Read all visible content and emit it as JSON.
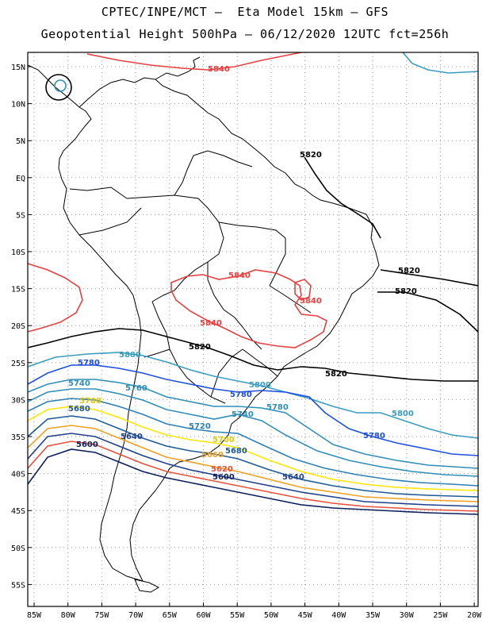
{
  "header": {
    "line1": "CPTEC/INPE/MCT –  Eta Model 15km – GFS",
    "line2": "Geopotential Height 500hPa – 06/12/2020 12UTC fct=256h"
  },
  "axes": {
    "lat_labels": [
      "15N",
      "10N",
      "5N",
      "EQ",
      "5S",
      "10S",
      "15S",
      "20S",
      "25S",
      "30S",
      "35S",
      "40S",
      "45S",
      "50S",
      "55S"
    ],
    "lon_labels": [
      "85W",
      "80W",
      "75W",
      "70W",
      "65W",
      "60W",
      "55W",
      "50W",
      "45W",
      "40W",
      "35W",
      "30W",
      "25W",
      "20W"
    ]
  },
  "colors": {
    "c5600": "#0b1f5c",
    "c5620": "#e8503c",
    "c5640": "#1f3f8c",
    "c5660": "#f0a020",
    "c5680": "#1e5a96",
    "c5700": "#ffe600",
    "c5720": "#2d7fb5",
    "c5740": "#2f8fb8",
    "c5760": "#2f8fb8",
    "c5780": "#1e4fe0",
    "c5800": "#3a9cc0",
    "c5820": "#000000",
    "c5840": "#e84040"
  },
  "contours": {
    "labels": [
      {
        "id": "l5840-top",
        "text": "5840",
        "color": "#e84040"
      },
      {
        "id": "l5820-a",
        "text": "5820",
        "color": "#000000"
      },
      {
        "id": "l5840-a",
        "text": "5840",
        "color": "#e84040"
      },
      {
        "id": "l5840-b",
        "text": "5840",
        "color": "#e84040"
      },
      {
        "id": "l5840-c",
        "text": "5840",
        "color": "#e84040"
      },
      {
        "id": "l5820-b",
        "text": "5820",
        "color": "#000000"
      },
      {
        "id": "l5820-c",
        "text": "5820",
        "color": "#000000"
      },
      {
        "id": "l5820-d",
        "text": "5820",
        "color": "#000000"
      },
      {
        "id": "l5820-e",
        "text": "5820",
        "color": "#000000"
      },
      {
        "id": "l5800-a",
        "text": "5800",
        "color": "#3a9cc0"
      },
      {
        "id": "l5780-a",
        "text": "5780",
        "color": "#1e4fe0"
      },
      {
        "id": "l5760-a",
        "text": "5760",
        "color": "#2f8fb8"
      },
      {
        "id": "l5740-a",
        "text": "5740",
        "color": "#2f8fb8"
      },
      {
        "id": "l5700-a",
        "text": "5700",
        "color": "#e0c800"
      },
      {
        "id": "l5680-a",
        "text": "5680",
        "color": "#1e5a96"
      },
      {
        "id": "l5640-a",
        "text": "5640",
        "color": "#1f3f8c"
      },
      {
        "id": "l5600-a",
        "text": "5600",
        "color": "#0b1f5c"
      },
      {
        "id": "l5800-b",
        "text": "5800",
        "color": "#3a9cc0"
      },
      {
        "id": "l5780-b",
        "text": "5780",
        "color": "#1e4fe0"
      },
      {
        "id": "l5740-b",
        "text": "5740",
        "color": "#2f8fb8"
      },
      {
        "id": "l5780-c",
        "text": "5780",
        "color": "#2f8fb8"
      },
      {
        "id": "l5720-a",
        "text": "5720",
        "color": "#2d7fb5"
      },
      {
        "id": "l5700-b",
        "text": "5700",
        "color": "#e0c800"
      },
      {
        "id": "l5660-a",
        "text": "5660",
        "color": "#f0a020"
      },
      {
        "id": "l5680-b",
        "text": "5680",
        "color": "#1e5a96"
      },
      {
        "id": "l5620-a",
        "text": "5620",
        "color": "#e8503c"
      },
      {
        "id": "l5600-b",
        "text": "5600",
        "color": "#0b1f5c"
      },
      {
        "id": "l5640-b",
        "text": "5640",
        "color": "#1f3f8c"
      },
      {
        "id": "l5800-c",
        "text": "5800",
        "color": "#3a9cc0"
      },
      {
        "id": "l5780-d",
        "text": "5780",
        "color": "#1e4fe0"
      }
    ]
  }
}
